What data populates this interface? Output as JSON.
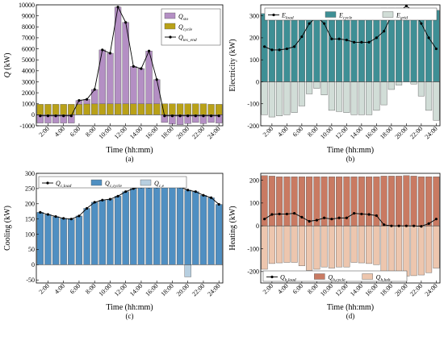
{
  "time_labels": [
    "2:00",
    "4:00",
    "6:00",
    "8:00",
    "10:00",
    "12:00",
    "14:00",
    "16:00",
    "18:00",
    "20:00",
    "22:00",
    "24:00"
  ],
  "chart_data": [
    {
      "panel": "a",
      "type": "bar",
      "caption": "(a)",
      "xlabel": "Time (hh:mm)",
      "ylabel_main": "Q",
      "ylabel_unit": " (kW)",
      "ylim": [
        -1000,
        10000
      ],
      "yticks": [
        -1000,
        0,
        1000,
        2000,
        3000,
        4000,
        5000,
        6000,
        7000,
        8000,
        9000,
        10000
      ],
      "legend_position": "top-right",
      "series": [
        {
          "name": "Q",
          "sub": "sto",
          "kind": "bar",
          "color": "#b48fc4",
          "values": [
            -750,
            -750,
            -750,
            -750,
            -750,
            1300,
            1400,
            2300,
            5900,
            5600,
            9800,
            8400,
            4400,
            4200,
            5800,
            3200,
            -700,
            -850,
            -900,
            -800,
            -700,
            -800,
            -700,
            -750
          ]
        },
        {
          "name": "Q",
          "sub": "cycle",
          "kind": "bar",
          "color": "#b9a118",
          "values": [
            950,
            950,
            950,
            950,
            950,
            950,
            980,
            990,
            1000,
            1000,
            1000,
            1000,
            1000,
            1000,
            1000,
            1000,
            1000,
            1000,
            1000,
            1000,
            1000,
            1000,
            950,
            950
          ]
        },
        {
          "name": "Q",
          "sub": "tes_end",
          "kind": "line",
          "color": "#000000",
          "values": [
            -100,
            -100,
            -100,
            -100,
            -100,
            1300,
            1400,
            2300,
            5900,
            5600,
            9800,
            8400,
            4400,
            4200,
            5800,
            3200,
            -100,
            -100,
            -100,
            -100,
            -100,
            -100,
            -100,
            -100
          ]
        }
      ]
    },
    {
      "panel": "b",
      "type": "bar",
      "caption": "(b)",
      "xlabel": "Time (hh:mm)",
      "ylabel_main": "Electricity",
      "ylabel_unit": " (kW)",
      "ylim": [
        -200,
        350
      ],
      "yticks": [
        -200,
        -100,
        0,
        100,
        200,
        300
      ],
      "legend_position": "top",
      "series": [
        {
          "name": "E",
          "sub": "load",
          "kind": "line",
          "color": "#000000",
          "values": [
            160,
            145,
            145,
            150,
            160,
            205,
            265,
            295,
            265,
            195,
            195,
            190,
            180,
            180,
            180,
            200,
            230,
            300,
            320,
            345,
            320,
            265,
            200,
            150
          ]
        },
        {
          "name": "E",
          "sub": "cycle",
          "kind": "bar",
          "color": "#3e8f95",
          "values": [
            310,
            305,
            300,
            300,
            300,
            315,
            320,
            320,
            325,
            325,
            330,
            330,
            330,
            330,
            330,
            330,
            335,
            335,
            335,
            335,
            330,
            330,
            330,
            325
          ]
        },
        {
          "name": "E",
          "sub": "grid",
          "kind": "bar",
          "color": "#d1ddd7",
          "values": [
            -150,
            -160,
            -155,
            -150,
            -140,
            -110,
            -55,
            -30,
            -60,
            -130,
            -135,
            -140,
            -150,
            -150,
            -150,
            -130,
            -105,
            -35,
            -15,
            0,
            -10,
            -65,
            -130,
            -175
          ]
        }
      ]
    },
    {
      "panel": "c",
      "type": "bar",
      "caption": "(c)",
      "xlabel": "Time (hh:mm)",
      "ylabel_main": "Cooling",
      "ylabel_unit": " (kW)",
      "ylim": [
        -60,
        300
      ],
      "yticks": [
        -50,
        0,
        50,
        100,
        150,
        200,
        250,
        300
      ],
      "legend_position": "top-left",
      "series": [
        {
          "name": "Q",
          "sub": "c,load",
          "kind": "line",
          "color": "#000000",
          "values": [
            172,
            165,
            158,
            152,
            150,
            160,
            185,
            205,
            212,
            215,
            225,
            240,
            250,
            255,
            255,
            255,
            258,
            258,
            255,
            245,
            240,
            228,
            220,
            198
          ]
        },
        {
          "name": "Q",
          "sub": "c,cycle",
          "kind": "bar",
          "color": "#4f8fc2",
          "values": [
            172,
            165,
            158,
            152,
            150,
            160,
            185,
            205,
            212,
            215,
            225,
            240,
            250,
            255,
            255,
            255,
            258,
            258,
            255,
            245,
            240,
            228,
            220,
            198
          ]
        },
        {
          "name": "Q",
          "sub": "c,e",
          "kind": "bar",
          "color": "#b7cfe0",
          "values": [
            0,
            0,
            0,
            0,
            0,
            0,
            0,
            0,
            0,
            0,
            0,
            0,
            0,
            0,
            0,
            0,
            0,
            0,
            0,
            -40,
            0,
            0,
            0,
            0
          ]
        }
      ]
    },
    {
      "panel": "d",
      "type": "bar",
      "caption": "(d)",
      "xlabel": "Time (hh:mm)",
      "ylabel_main": "Heating",
      "ylabel_unit": " (kW)",
      "ylim": [
        -250,
        230
      ],
      "yticks": [
        -200,
        -100,
        0,
        100,
        200
      ],
      "legend_position": "bottom-left",
      "series": [
        {
          "name": "Q",
          "sub": "h,load",
          "kind": "line",
          "color": "#000000",
          "values": [
            30,
            50,
            52,
            52,
            55,
            38,
            20,
            25,
            35,
            30,
            35,
            35,
            55,
            52,
            50,
            45,
            5,
            0,
            0,
            0,
            0,
            -2,
            10,
            30
          ]
        },
        {
          "name": "Q",
          "sub": "h,cycle",
          "kind": "bar",
          "color": "#c97a62",
          "values": [
            220,
            218,
            215,
            215,
            215,
            215,
            215,
            215,
            215,
            215,
            215,
            215,
            215,
            215,
            215,
            215,
            218,
            218,
            218,
            220,
            218,
            215,
            215,
            215
          ]
        },
        {
          "name": "Q",
          "sub": "h,hxh",
          "kind": "bar",
          "color": "#edc6ae",
          "values": [
            -190,
            -165,
            -162,
            -160,
            -160,
            -175,
            -195,
            -190,
            -180,
            -185,
            -180,
            -180,
            -160,
            -162,
            -165,
            -170,
            -210,
            -218,
            -218,
            -220,
            -218,
            -215,
            -205,
            -185
          ]
        }
      ]
    }
  ]
}
